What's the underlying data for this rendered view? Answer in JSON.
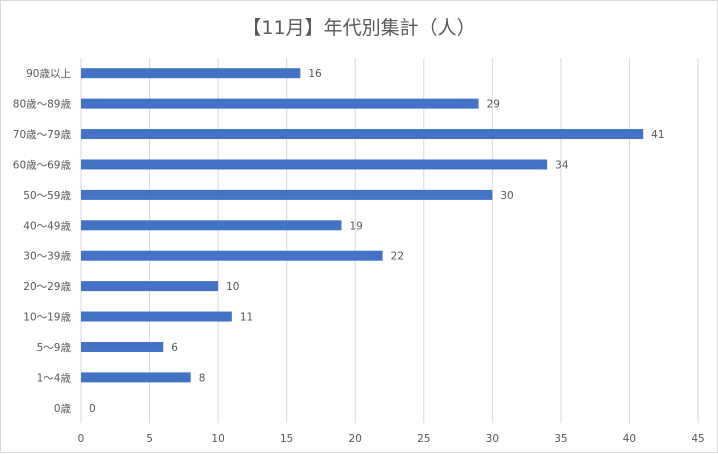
{
  "chart_data": {
    "type": "bar",
    "orientation": "horizontal",
    "title": "【11月】年代別集計（人）",
    "categories": [
      "90歳以上",
      "80歳～89歳",
      "70歳～79歳",
      "60歳～69歳",
      "50～59歳",
      "40～49歳",
      "30～39歳",
      "20～29歳",
      "10～19歳",
      "5～9歳",
      "1～4歳",
      "0歳"
    ],
    "values": [
      16,
      29,
      41,
      34,
      30,
      19,
      22,
      10,
      11,
      6,
      8,
      0
    ],
    "xlim": [
      0,
      45
    ],
    "xticks": [
      0,
      5,
      10,
      15,
      20,
      25,
      30,
      35,
      40,
      45
    ],
    "grid": true,
    "data_labels": true,
    "legend": "none",
    "bar_color": "#4472C4",
    "grid_color": "#d9d9d9"
  }
}
